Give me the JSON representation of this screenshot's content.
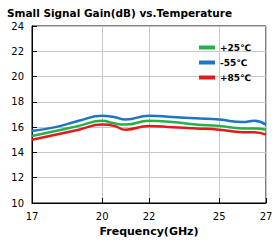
{
  "chart_data": {
    "type": "line",
    "title": "Small Signal Gain(dB) vs.Temperature",
    "x_label": "Frequency(GHz)",
    "x": [
      17,
      18,
      19,
      20,
      20.5,
      21,
      22,
      23,
      24,
      25,
      26,
      26.5,
      27
    ],
    "series": [
      {
        "name": "+25℃",
        "color": "#22b24c",
        "values": [
          15.3,
          15.7,
          16.1,
          16.5,
          16.3,
          16.2,
          16.5,
          16.4,
          16.2,
          16.1,
          15.9,
          15.9,
          15.8
        ]
      },
      {
        "name": "-55℃",
        "color": "#1f74c4",
        "values": [
          15.7,
          16.0,
          16.5,
          16.9,
          16.8,
          16.6,
          16.9,
          16.8,
          16.7,
          16.6,
          16.4,
          16.5,
          16.2
        ]
      },
      {
        "name": "+85℃",
        "color": "#e3191c",
        "values": [
          15.0,
          15.4,
          15.8,
          16.2,
          16.1,
          15.8,
          16.1,
          16.0,
          15.9,
          15.8,
          15.6,
          15.6,
          15.4
        ]
      }
    ],
    "xlim": [
      17,
      27
    ],
    "xticks": [
      17,
      20,
      22,
      25,
      27
    ],
    "ylim": [
      10,
      24
    ],
    "yticks": [
      10,
      12,
      14,
      16,
      18,
      20,
      22,
      24
    ],
    "grid": true,
    "legend": "upper right"
  }
}
